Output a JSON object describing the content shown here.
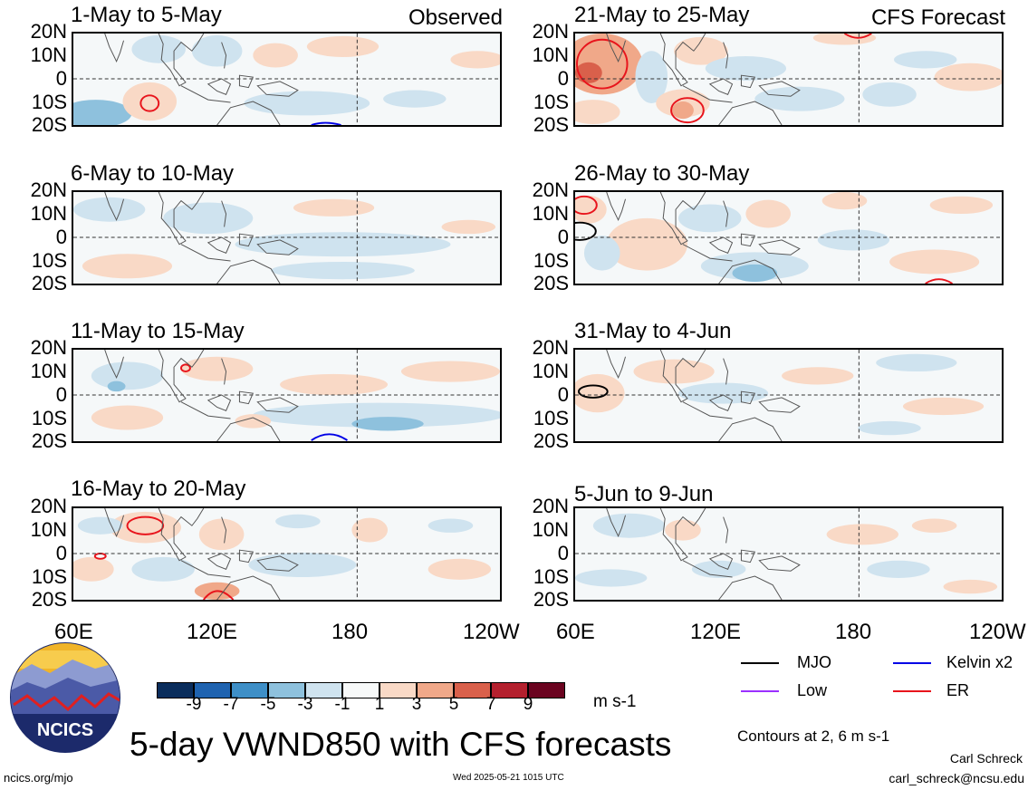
{
  "panels": [
    {
      "id": "p1",
      "title": "1-May to 5-May",
      "tag": "Observed"
    },
    {
      "id": "p2",
      "title": "6-May to 10-May",
      "tag": ""
    },
    {
      "id": "p3",
      "title": "11-May to 15-May",
      "tag": ""
    },
    {
      "id": "p4",
      "title": "16-May to 20-May",
      "tag": ""
    },
    {
      "id": "p5",
      "title": "21-May to 25-May",
      "tag": "CFS Forecast"
    },
    {
      "id": "p6",
      "title": "26-May to 30-May",
      "tag": ""
    },
    {
      "id": "p7",
      "title": "31-May to 4-Jun",
      "tag": ""
    },
    {
      "id": "p8",
      "title": "5-Jun to 9-Jun",
      "tag": ""
    }
  ],
  "lat_labels": [
    "20N",
    "10N",
    "0",
    "10S",
    "20S"
  ],
  "lon_labels": [
    "60E",
    "120E",
    "180",
    "120W"
  ],
  "colorbar": {
    "colors": [
      "#0a2d5c",
      "#1f63b0",
      "#3e8fc7",
      "#8ec1dd",
      "#cfe3ef",
      "#f7f9f9",
      "#f9d9c6",
      "#f0a889",
      "#d9604b",
      "#b4202e",
      "#6b0420"
    ],
    "ticks": [
      "-9",
      "-7",
      "-5",
      "-3",
      "-1",
      "1",
      "3",
      "5",
      "7",
      "9"
    ],
    "units": "m s-1"
  },
  "legend": [
    {
      "label": "MJO",
      "color": "#000000"
    },
    {
      "label": "Kelvin x2",
      "color": "#0000e6"
    },
    {
      "label": "Low",
      "color": "#9b30ff"
    },
    {
      "label": "ER",
      "color": "#e8141c"
    }
  ],
  "contour_note": "Contours at 2, 6 m s-1",
  "logo_text": "NCICS",
  "main_title": "5-day VWND850 with CFS forecasts",
  "footer": {
    "url": "ncics.org/mjo",
    "timestamp": "Wed 2025-05-21 1015 UTC",
    "author": "Carl Schreck",
    "email": "carl_schreck@ncsu.edu"
  }
}
